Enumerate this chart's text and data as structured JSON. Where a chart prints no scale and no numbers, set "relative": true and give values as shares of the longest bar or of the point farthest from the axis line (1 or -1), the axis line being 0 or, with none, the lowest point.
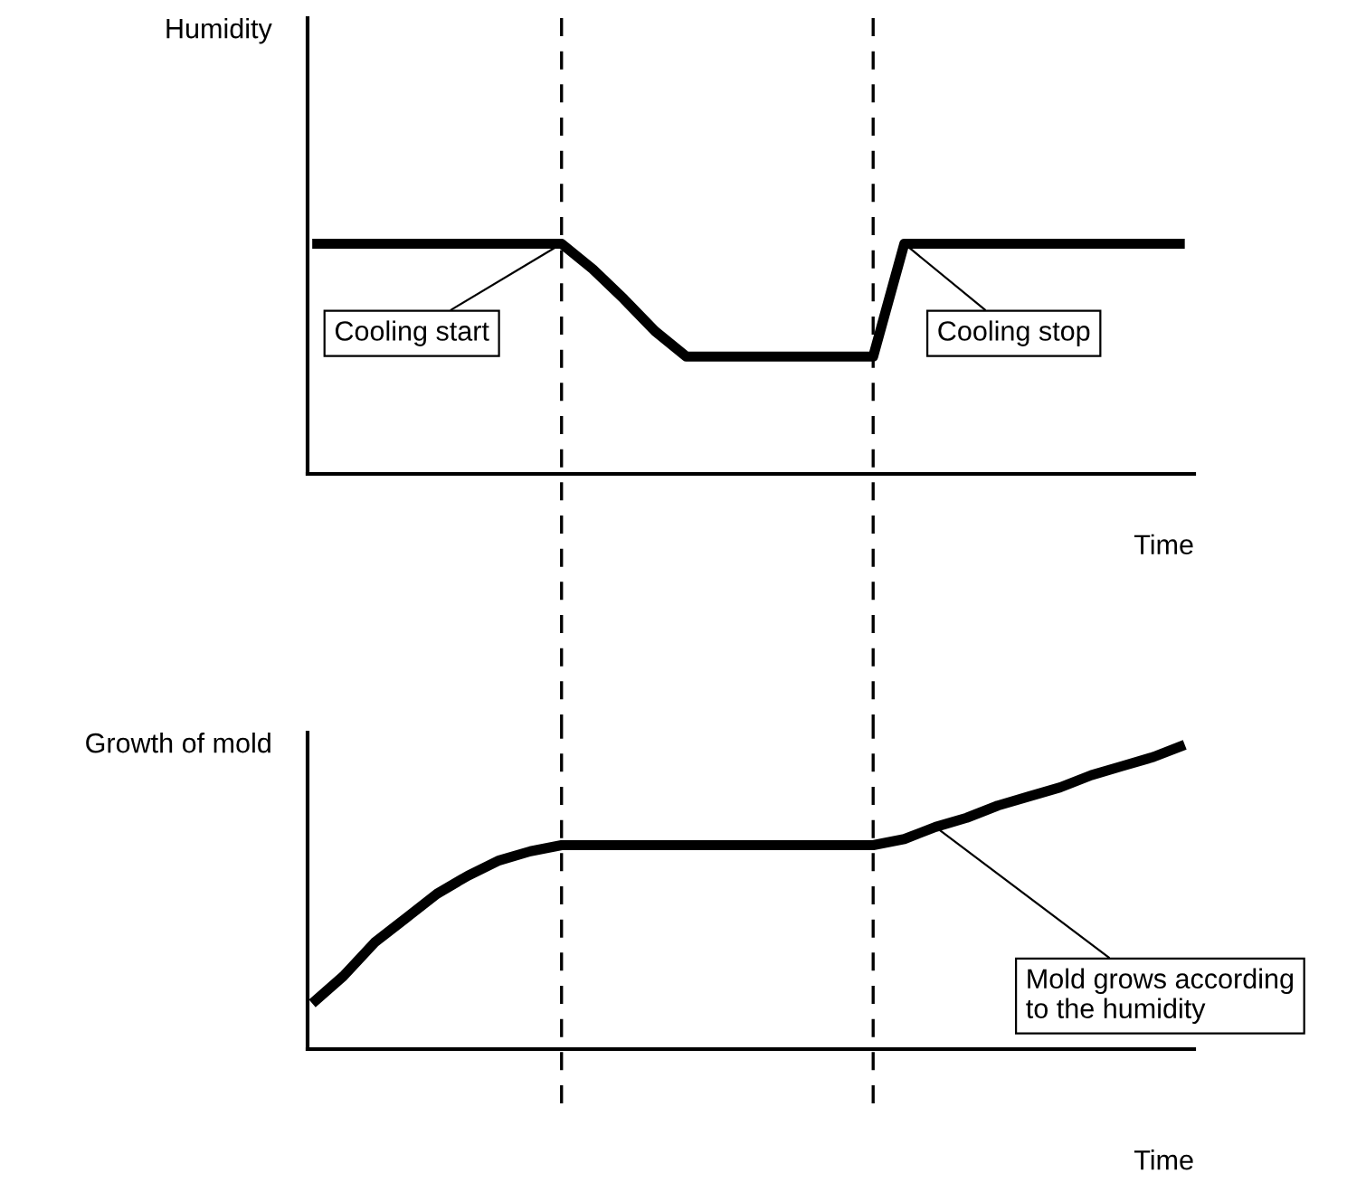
{
  "chart_data": [
    {
      "type": "line",
      "ylabel": "Humidity",
      "xlabel": "Time",
      "relative": true,
      "categories": [
        null,
        null,
        null,
        null,
        null,
        null,
        null,
        null,
        null,
        null,
        null,
        null,
        null,
        null,
        null,
        null,
        null,
        null,
        null,
        null,
        null,
        null,
        null,
        null,
        null,
        null,
        null,
        null,
        null
      ],
      "series": [
        {
          "color": "#000000",
          "values": [
            1,
            1,
            1,
            1,
            1,
            1,
            1,
            1,
            1,
            0.89,
            0.76,
            0.62,
            0.51,
            0.51,
            0.51,
            0.51,
            0.51,
            0.51,
            0.51,
            1,
            1,
            1,
            1,
            1,
            1,
            1,
            1,
            1,
            1
          ]
        }
      ],
      "annotations": [
        "Cooling start",
        "Cooling stop"
      ],
      "grid": false,
      "legend": false,
      "tick_labels": false
    },
    {
      "type": "line",
      "ylabel": "Growth of mold",
      "xlabel": "Time",
      "relative": true,
      "categories": [
        null,
        null,
        null,
        null,
        null,
        null,
        null,
        null,
        null,
        null,
        null,
        null,
        null,
        null,
        null,
        null,
        null,
        null,
        null,
        null,
        null,
        null,
        null,
        null,
        null,
        null,
        null,
        null,
        null
      ],
      "series": [
        {
          "color": "#000000",
          "values": [
            0.15,
            0.24,
            0.35,
            0.43,
            0.51,
            0.57,
            0.62,
            0.65,
            0.67,
            0.67,
            0.67,
            0.67,
            0.67,
            0.67,
            0.67,
            0.67,
            0.67,
            0.67,
            0.67,
            0.69,
            0.73,
            0.76,
            0.8,
            0.83,
            0.86,
            0.9,
            0.93,
            0.96,
            1
          ]
        }
      ],
      "annotations": [
        "Mold grows according\nto the humidity"
      ],
      "grid": false,
      "legend": false,
      "tick_labels": false
    }
  ]
}
